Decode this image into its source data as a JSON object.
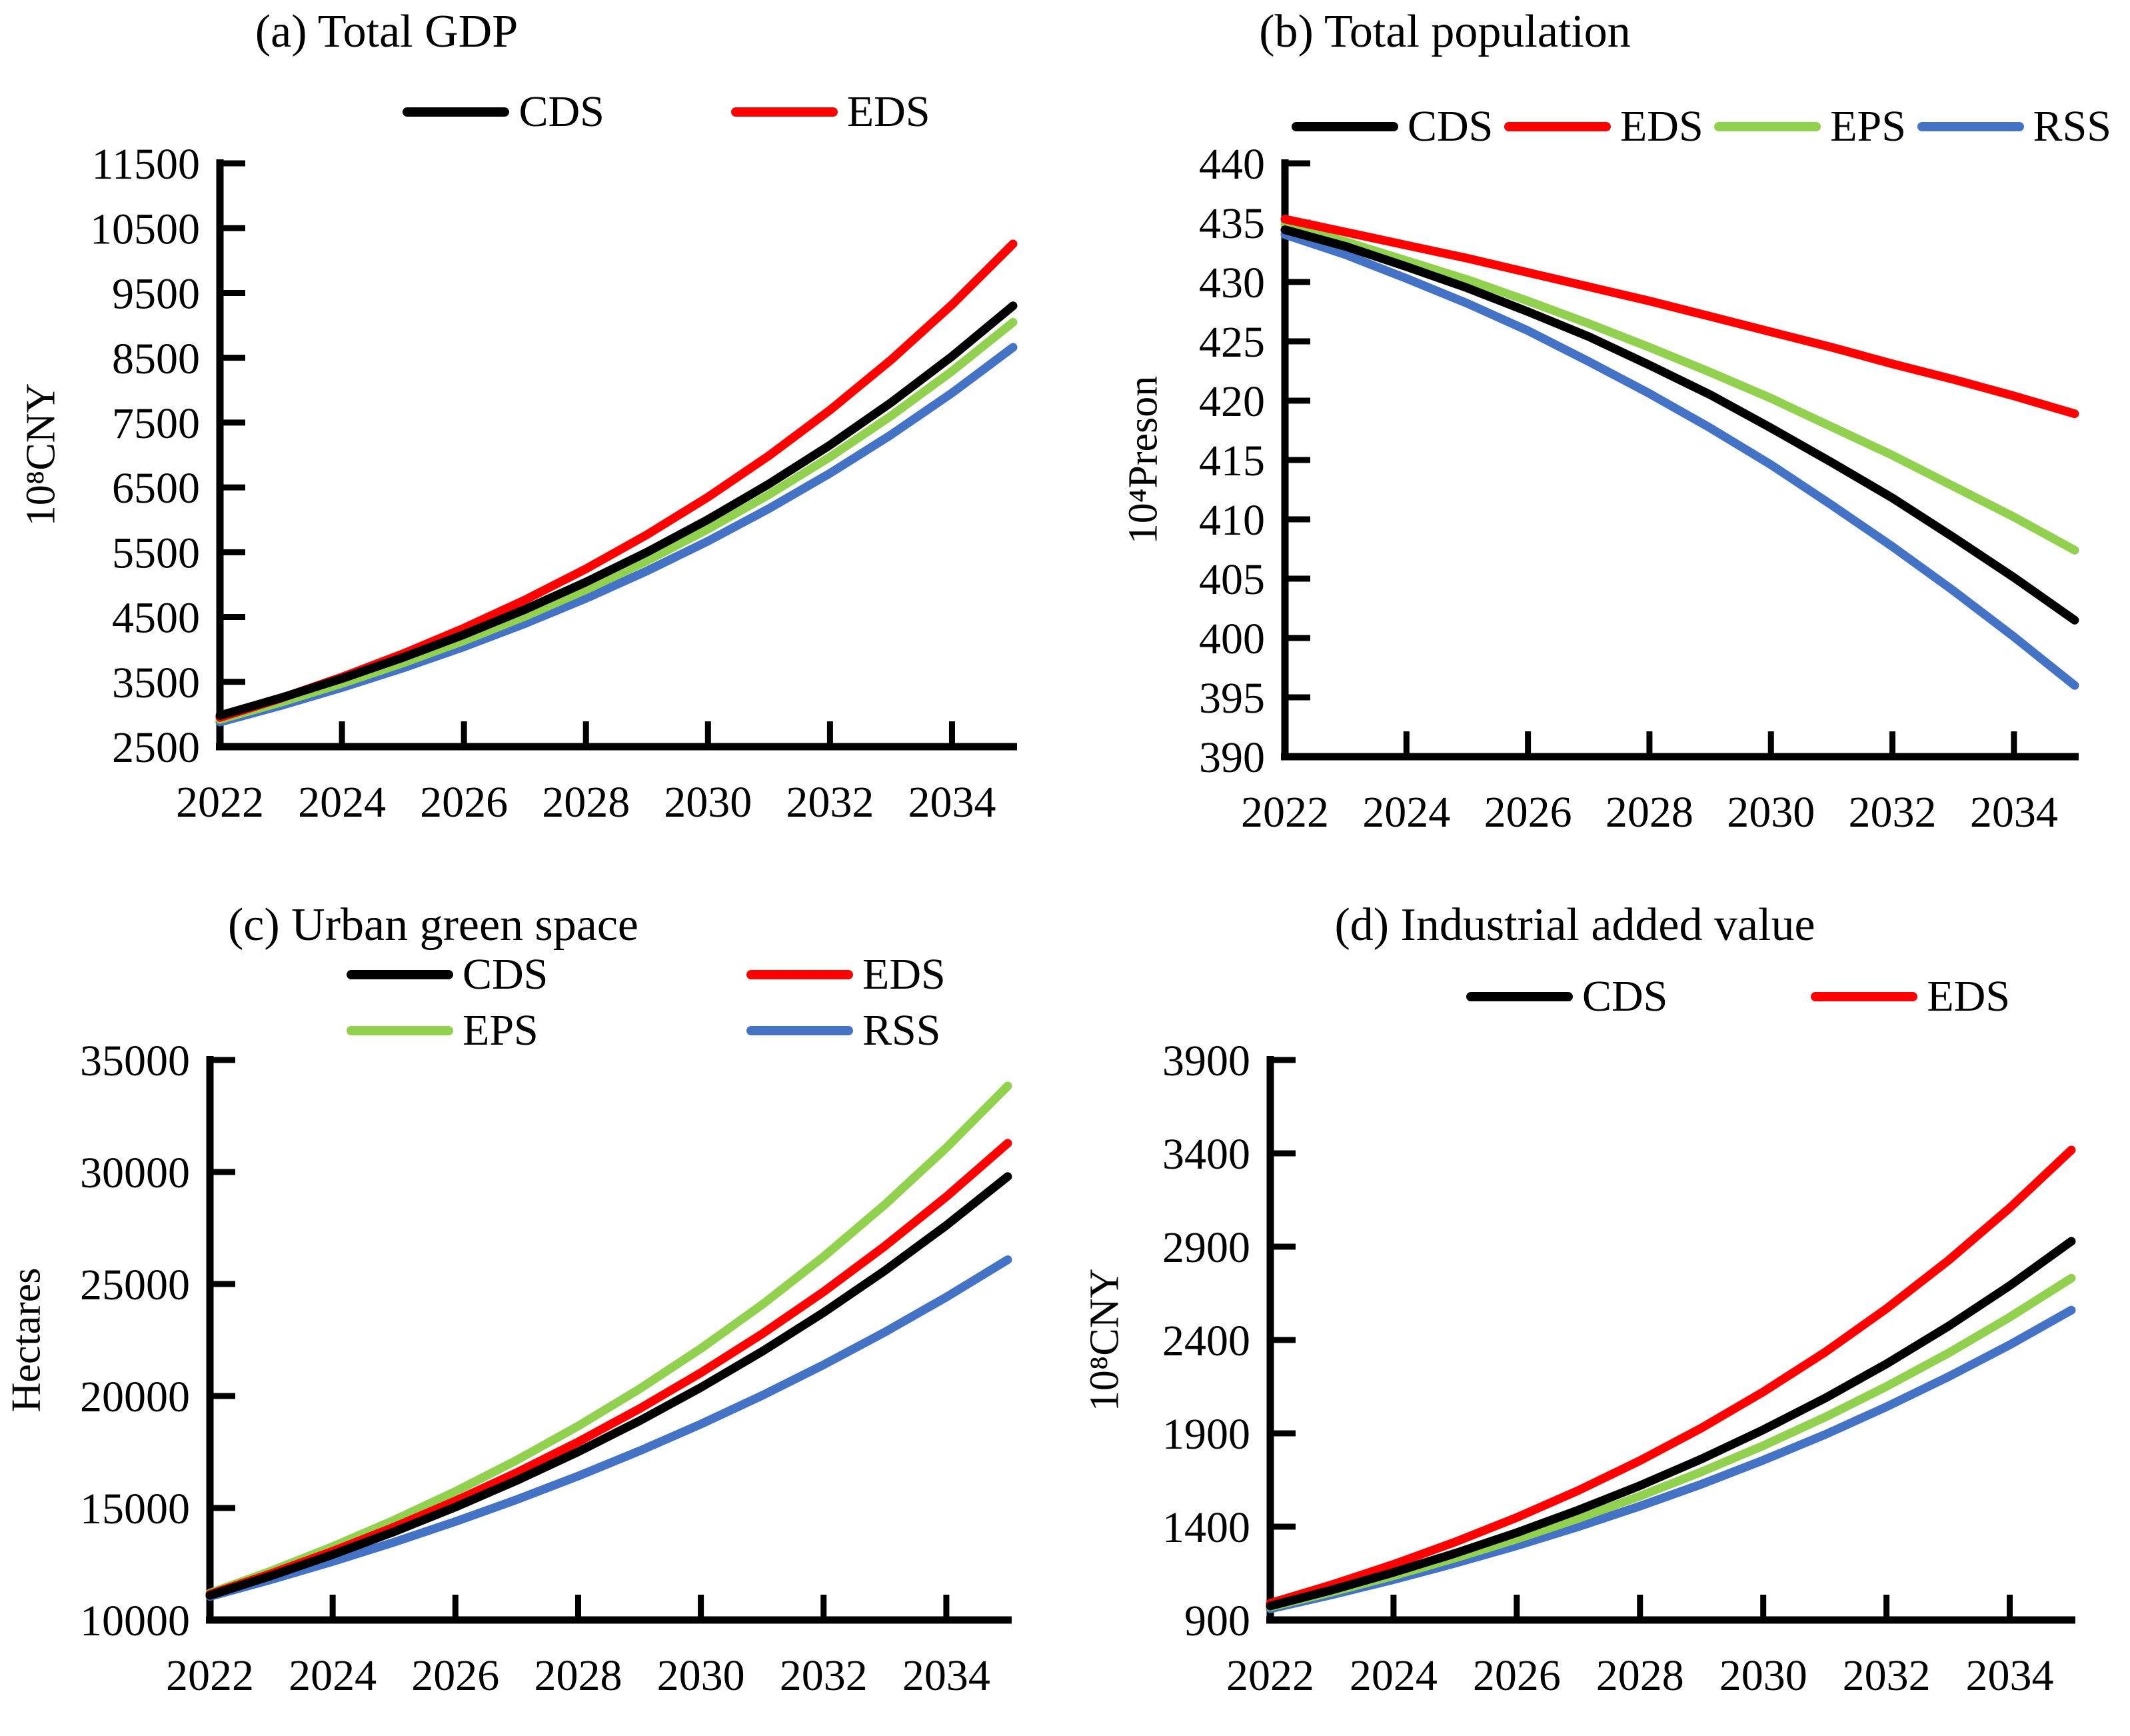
{
  "figure": {
    "background": "#FFFFFF"
  },
  "colors": {
    "CDS": "#000000",
    "EDS": "#FF0000",
    "EPS": "#92D050",
    "RSS": "#4472C4"
  },
  "chart_data": [
    {
      "type": "line",
      "id": "total-gdp",
      "title": "(a) Total GDP",
      "ylabel": "10⁸CNY",
      "ylim": [
        2500,
        11500
      ],
      "ystep": 1000,
      "x": [
        2022,
        2023,
        2024,
        2025,
        2026,
        2027,
        2028,
        2029,
        2030,
        2031,
        2032,
        2033,
        2034,
        2035
      ],
      "xticks": [
        2024,
        2026,
        2028,
        2030,
        2032,
        2034
      ],
      "xlabels": [
        2022,
        2024,
        2026,
        2028,
        2030,
        2032,
        2034
      ],
      "legend": {
        "layout": "row",
        "entries": [
          "CDS",
          "EDS"
        ]
      },
      "series": [
        {
          "name": "CDS",
          "values": [
            2980,
            3253,
            3551,
            3876,
            4230,
            4617,
            5040,
            5501,
            6004,
            6554,
            7153,
            7808,
            8522,
            9302
          ]
        },
        {
          "name": "EDS",
          "values": [
            2950,
            3247,
            3574,
            3933,
            4329,
            4764,
            5243,
            5771,
            6351,
            6990,
            7693,
            8467,
            9319,
            10256
          ]
        },
        {
          "name": "EPS",
          "values": [
            2920,
            3185,
            3475,
            3791,
            4135,
            4511,
            4921,
            5368,
            5856,
            6389,
            6969,
            7603,
            8294,
            9048
          ]
        },
        {
          "name": "RSS",
          "values": [
            2880,
            3135,
            3412,
            3713,
            4041,
            4399,
            4788,
            5211,
            5671,
            6173,
            6718,
            7312,
            7958,
            8661
          ]
        }
      ]
    },
    {
      "type": "line",
      "id": "total-population",
      "title": "(b) Total population",
      "ylabel": "10⁴Preson",
      "ylim": [
        390,
        440
      ],
      "ystep": 5,
      "x": [
        2022,
        2023,
        2024,
        2025,
        2026,
        2027,
        2028,
        2029,
        2030,
        2031,
        2032,
        2033,
        2034,
        2035
      ],
      "xticks": [
        2024,
        2026,
        2028,
        2030,
        2032,
        2034
      ],
      "xlabels": [
        2022,
        2024,
        2026,
        2028,
        2030,
        2032,
        2034
      ],
      "legend": {
        "layout": "row4",
        "entries": [
          "CDS",
          "EDS",
          "EPS",
          "RSS"
        ]
      },
      "series": [
        {
          "name": "CDS",
          "values": [
            434.4,
            433.0,
            431.3,
            429.5,
            427.5,
            425.4,
            423.0,
            420.5,
            417.7,
            414.8,
            411.8,
            408.5,
            405.1,
            401.5
          ]
        },
        {
          "name": "EDS",
          "values": [
            435.3,
            434.2,
            433.1,
            432.0,
            430.8,
            429.6,
            428.4,
            427.1,
            425.8,
            424.5,
            423.1,
            421.8,
            420.4,
            418.9
          ]
        },
        {
          "name": "EPS",
          "values": [
            434.8,
            433.4,
            431.8,
            430.2,
            428.4,
            426.5,
            424.5,
            422.4,
            420.2,
            417.8,
            415.4,
            412.8,
            410.2,
            407.4
          ]
        },
        {
          "name": "RSS",
          "values": [
            434.0,
            432.3,
            430.3,
            428.2,
            425.9,
            423.3,
            420.6,
            417.7,
            414.6,
            411.2,
            407.7,
            404.0,
            400.1,
            396.0
          ]
        }
      ]
    },
    {
      "type": "line",
      "id": "urban-green-space",
      "title": "(c) Urban green space",
      "ylabel": "Hectares",
      "ylim": [
        10000,
        35000
      ],
      "ystep": 5000,
      "x": [
        2022,
        2023,
        2024,
        2025,
        2026,
        2027,
        2028,
        2029,
        2030,
        2031,
        2032,
        2033,
        2034,
        2035
      ],
      "xticks": [
        2024,
        2026,
        2028,
        2030,
        2032,
        2034
      ],
      "xlabels": [
        2022,
        2024,
        2026,
        2028,
        2030,
        2032,
        2034
      ],
      "legend": {
        "layout": "grid",
        "entries": [
          "CDS",
          "EDS",
          "EPS",
          "RSS"
        ]
      },
      "series": [
        {
          "name": "CDS",
          "values": [
            11100,
            11976,
            12921,
            13941,
            15041,
            16228,
            17509,
            18891,
            20381,
            21990,
            23725,
            25597,
            27617,
            29797
          ]
        },
        {
          "name": "EDS",
          "values": [
            11150,
            12071,
            13068,
            14147,
            15316,
            16581,
            17950,
            19433,
            21038,
            22775,
            24656,
            26693,
            28897,
            31284
          ]
        },
        {
          "name": "EPS",
          "values": [
            11200,
            12194,
            13277,
            14456,
            15739,
            17136,
            18658,
            20314,
            22118,
            24081,
            26219,
            28547,
            31081,
            33840
          ]
        },
        {
          "name": "RSS",
          "values": [
            11050,
            11805,
            12611,
            13472,
            14392,
            15375,
            16425,
            17547,
            18745,
            20025,
            21393,
            22854,
            24415,
            26082
          ]
        }
      ]
    },
    {
      "type": "line",
      "id": "industrial-added-value",
      "title": "(d) Industrial added value",
      "ylabel": "10⁸CNY",
      "ylim": [
        900,
        3900
      ],
      "ystep": 500,
      "x": [
        2022,
        2023,
        2024,
        2025,
        2026,
        2027,
        2028,
        2029,
        2030,
        2031,
        2032,
        2033,
        2034,
        2035
      ],
      "xticks": [
        2024,
        2026,
        2028,
        2030,
        2032,
        2034
      ],
      "xlabels": [
        2022,
        2024,
        2026,
        2028,
        2030,
        2032,
        2034
      ],
      "legend": {
        "layout": "row",
        "entries": [
          "CDS",
          "EDS"
        ]
      },
      "series": [
        {
          "name": "CDS",
          "values": [
            975,
            1061,
            1155,
            1257,
            1368,
            1489,
            1620,
            1763,
            1919,
            2088,
            2272,
            2473,
            2691,
            2929
          ]
        },
        {
          "name": "EDS",
          "values": [
            990,
            1089,
            1198,
            1318,
            1449,
            1594,
            1754,
            1929,
            2122,
            2334,
            2568,
            2825,
            3107,
            3418
          ]
        },
        {
          "name": "EPS",
          "values": [
            970,
            1050,
            1137,
            1232,
            1334,
            1444,
            1564,
            1694,
            1834,
            1986,
            2151,
            2329,
            2522,
            2731
          ]
        },
        {
          "name": "RSS",
          "values": [
            960,
            1035,
            1116,
            1204,
            1298,
            1400,
            1510,
            1628,
            1756,
            1893,
            2042,
            2202,
            2374,
            2560
          ]
        }
      ]
    }
  ]
}
